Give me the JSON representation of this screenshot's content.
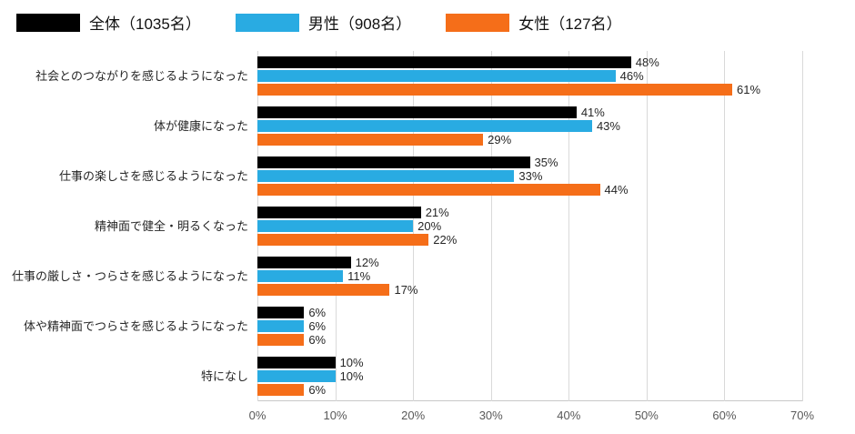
{
  "chart_data": {
    "type": "bar",
    "orientation": "horizontal",
    "title": "",
    "xlabel": "",
    "ylabel": "",
    "xlim": [
      0,
      70
    ],
    "grid": true,
    "legend_position": "top",
    "value_suffix": "%",
    "ticks": [
      "0%",
      "10%",
      "20%",
      "30%",
      "40%",
      "50%",
      "60%",
      "70%"
    ],
    "categories": [
      "社会とのつながりを感じるようになった",
      "体が健康になった",
      "仕事の楽しさを感じるようになった",
      "精神面で健全・明るくなった",
      "仕事の厳しさ・つらさを感じるようになった",
      "体や精神面でつらさを感じるようになった",
      "特になし"
    ],
    "series": [
      {
        "name": "全体（1035名）",
        "color": "#000000",
        "values": [
          48,
          41,
          35,
          21,
          12,
          6,
          10
        ]
      },
      {
        "name": "男性（908名）",
        "color": "#29ABE2",
        "values": [
          46,
          43,
          33,
          20,
          11,
          6,
          10
        ]
      },
      {
        "name": "女性（127名）",
        "color": "#F56E19",
        "values": [
          61,
          29,
          44,
          22,
          17,
          6,
          6
        ]
      }
    ],
    "colors": {
      "grid": "#D9D9D9",
      "axis": "#C9C9C9",
      "tick_text": "#595959",
      "label_text": "#262626"
    }
  }
}
